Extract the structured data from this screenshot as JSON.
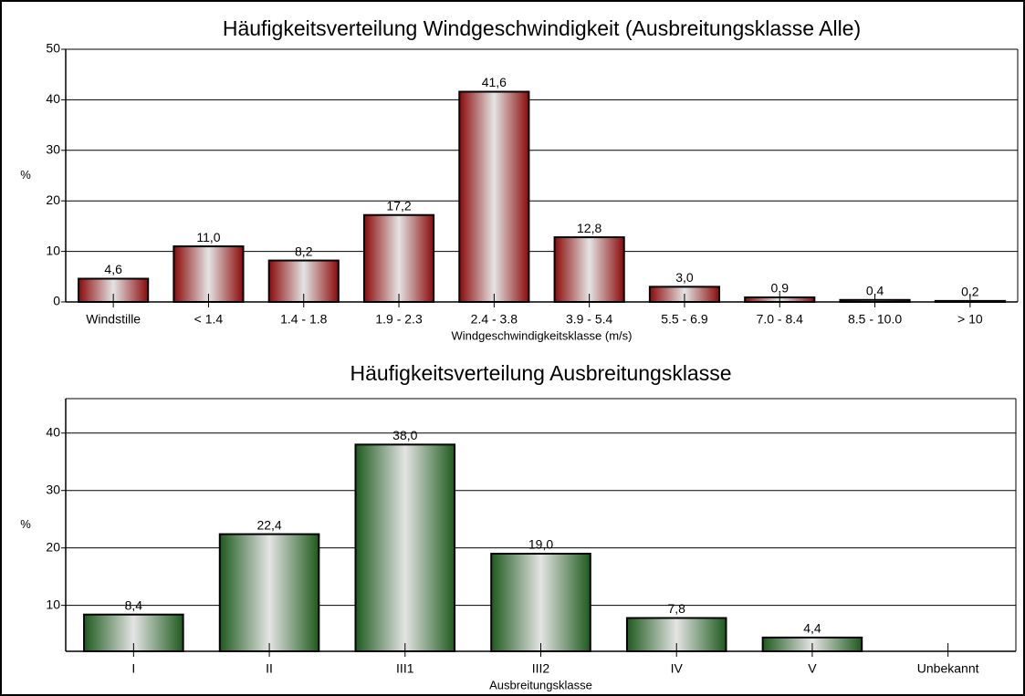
{
  "chart_data": [
    {
      "type": "bar",
      "title": "Häufigkeitsverteilung Windgeschwindigkeit (Ausbreitungsklasse Alle)",
      "ylabel": "%",
      "xlabel": "Windgeschwindigkeitsklasse (m/s)",
      "categories": [
        "Windstille",
        "< 1.4",
        "1.4 - 1.8",
        "1.9 - 2.3",
        "2.4 - 3.8",
        "3.9 - 5.4",
        "5.5 - 6.9",
        "7.0 - 8.4",
        "8.5 - 10.0",
        "> 10"
      ],
      "values": [
        4.6,
        11.0,
        8.2,
        17.2,
        41.6,
        12.8,
        3.0,
        0.9,
        0.4,
        0.2
      ],
      "value_labels": [
        "4,6",
        "11,0",
        "8,2",
        "17,2",
        "41,6",
        "12,8",
        "3,0",
        "0,9",
        "0,4",
        "0,2"
      ],
      "color": "#8b0a0a",
      "ylim": [
        0,
        50
      ],
      "yticks": [
        0,
        10,
        20,
        30,
        40,
        50
      ],
      "grid": true
    },
    {
      "type": "bar",
      "title": "Häufigkeitsverteilung Ausbreitungsklasse",
      "ylabel": "%",
      "xlabel": "Ausbreitungsklasse",
      "categories": [
        "I",
        "II",
        "III1",
        "III2",
        "IV",
        "V",
        "Unbekannt"
      ],
      "values": [
        8.4,
        22.4,
        38.0,
        19.0,
        7.8,
        4.4,
        null
      ],
      "value_labels": [
        "8,4",
        "22,4",
        "38,0",
        "19,0",
        "7,8",
        "4,4",
        null
      ],
      "color": "#1e5a1e",
      "ylim": [
        2,
        46
      ],
      "yticks": [
        10,
        20,
        30,
        40
      ],
      "grid": true
    }
  ]
}
